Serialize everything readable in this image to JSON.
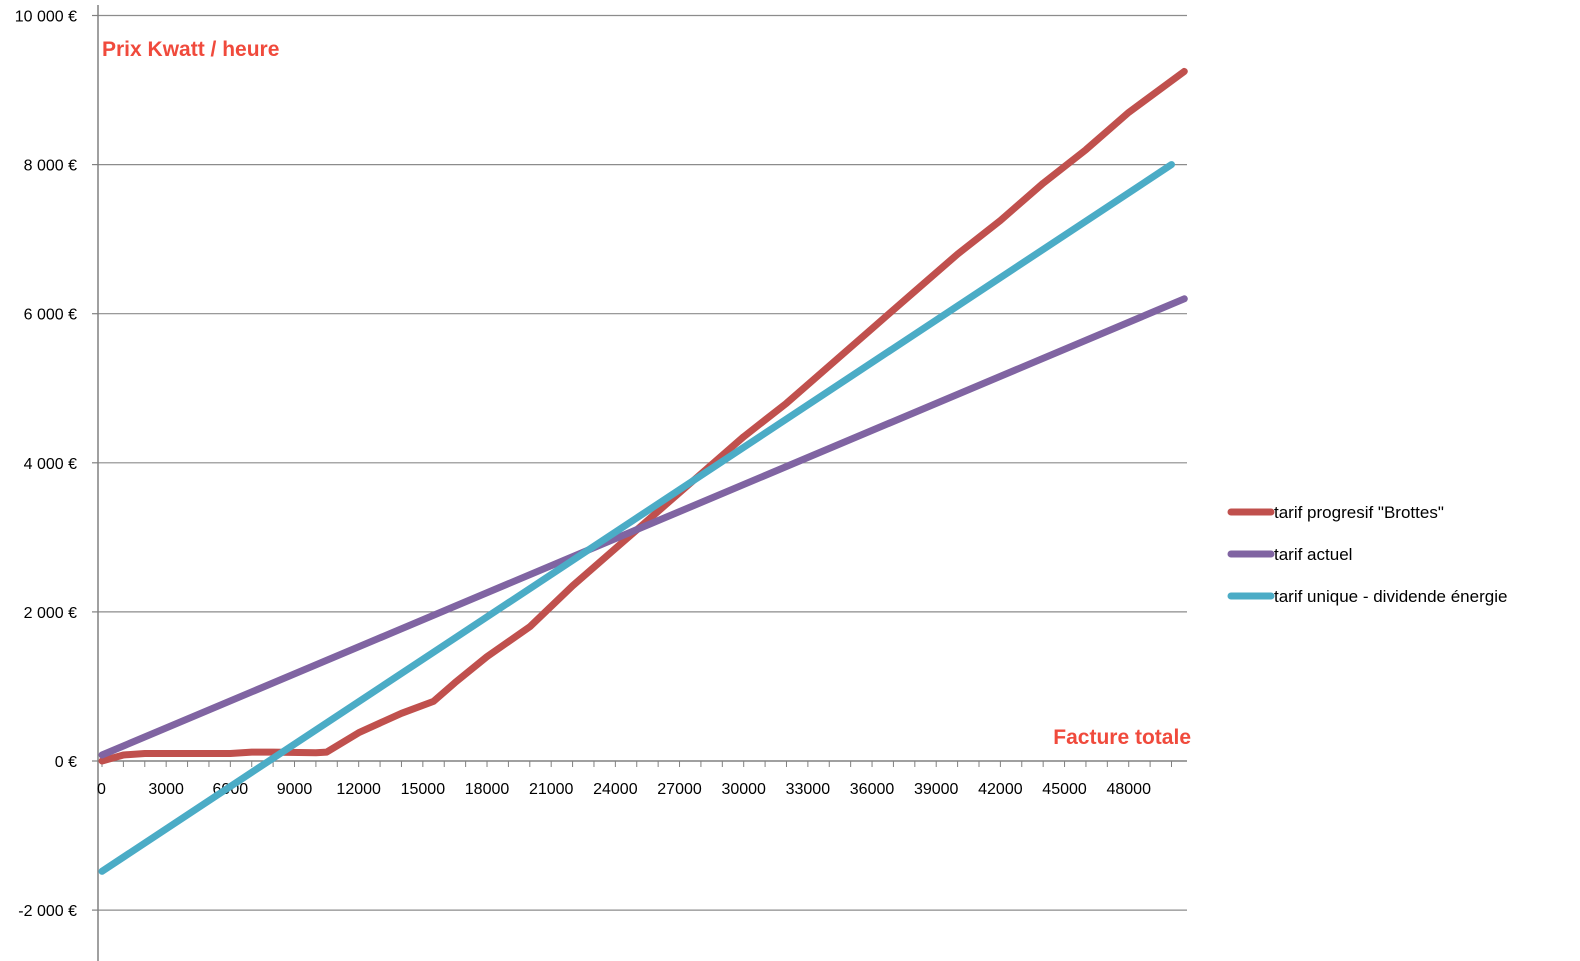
{
  "chart_data": {
    "type": "line",
    "title": "",
    "xlabel": "Facture totale",
    "ylabel": "Prix Kwatt / heure",
    "x_ticks": [
      0,
      3000,
      6000,
      9000,
      12000,
      15000,
      18000,
      21000,
      24000,
      27000,
      30000,
      33000,
      36000,
      39000,
      42000,
      45000,
      48000
    ],
    "y_ticks": [
      -2000,
      0,
      2000,
      4000,
      6000,
      8000,
      10000
    ],
    "y_tick_labels": [
      "-2 000 €",
      "0 €",
      "2 000 €",
      "4 000 €",
      "6 000 €",
      "8 000 €",
      "10 000 €"
    ],
    "xlim": [
      0,
      51000
    ],
    "ylim": [
      -2500,
      10000
    ],
    "grid": "horizontal",
    "legend_position": "right",
    "annotation_color": "#f04a3c",
    "series": [
      {
        "name": "tarif progresif \"Brottes\"",
        "color": "#c0504d",
        "x": [
          0,
          1000,
          2000,
          4000,
          6000,
          7000,
          8000,
          10000,
          10500,
          12000,
          14000,
          15500,
          16500,
          18000,
          20000,
          22000,
          24000,
          26000,
          28000,
          30000,
          32000,
          34000,
          36000,
          38000,
          40000,
          42000,
          44000,
          46000,
          48000,
          50600
        ],
        "values": [
          0,
          80,
          100,
          100,
          100,
          120,
          120,
          110,
          120,
          380,
          640,
          800,
          1050,
          1400,
          1800,
          2350,
          2850,
          3350,
          3850,
          4350,
          4800,
          5300,
          5800,
          6300,
          6800,
          7250,
          7750,
          8200,
          8700,
          9250
        ]
      },
      {
        "name": "tarif actuel",
        "color": "#8064a2",
        "x": [
          0,
          50600
        ],
        "values": [
          80,
          6200
        ]
      },
      {
        "name": "tarif unique - dividende énergie",
        "color": "#4bacc6",
        "x": [
          0,
          50000
        ],
        "values": [
          -1480,
          8000
        ]
      }
    ]
  }
}
